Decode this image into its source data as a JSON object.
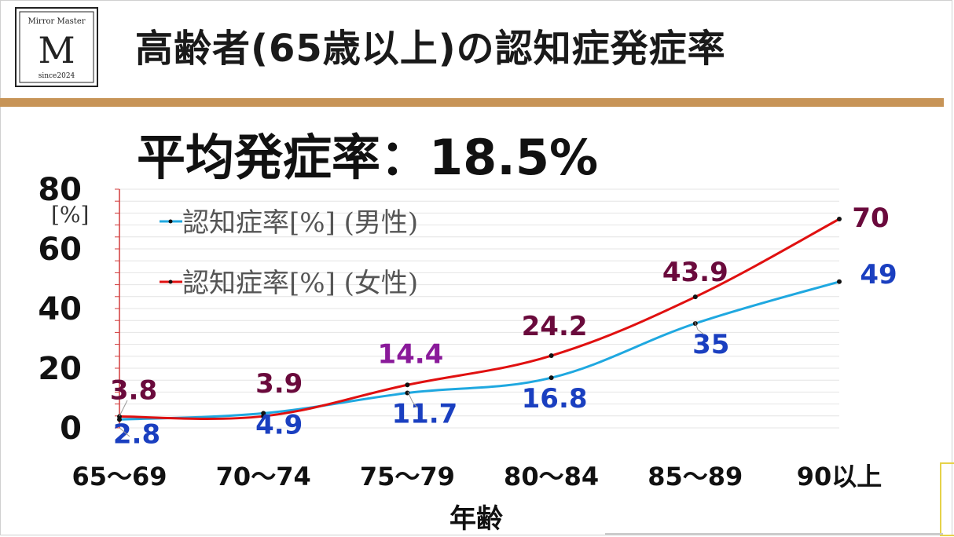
{
  "header": {
    "title": "高齢者(65歳以上)の認知症発症率",
    "logo_initial": "M",
    "logo_top_text": "Mirror Master",
    "logo_bottom_text": "since2024"
  },
  "summary": {
    "average_text": "平均発症率：18.5%"
  },
  "colors": {
    "title_bar": "#c79457",
    "male_line": "#1fa8e0",
    "female_line": "#e01010",
    "male_label": "#1a3fc0",
    "female_label": "#6a0a3c",
    "female_label_alt": "#8a1a9a",
    "axis_line": "#d23b3b"
  },
  "chart_data": {
    "type": "line",
    "categories": [
      "65～69",
      "70～74",
      "75～79",
      "80～84",
      "85～89",
      "90以上"
    ],
    "xlabel": "年齢",
    "ylabel": "[%]",
    "ylim": [
      0,
      80
    ],
    "yticks": [
      0,
      20,
      40,
      60,
      80
    ],
    "grid": true,
    "legend_position": "top-left",
    "series": [
      {
        "name": "認知症率[%] (男性)",
        "values": [
          2.8,
          4.9,
          11.7,
          16.8,
          35,
          49
        ]
      },
      {
        "name": "認知症率[%] (女性)",
        "values": [
          3.8,
          3.9,
          14.4,
          24.2,
          43.9,
          70
        ]
      }
    ],
    "data_labels": {
      "male": [
        "2.8",
        "4.9",
        "11.7",
        "16.8",
        "35",
        "49"
      ],
      "female": [
        "3.8",
        "3.9",
        "14.4",
        "24.2",
        "43.9",
        "70"
      ]
    }
  }
}
